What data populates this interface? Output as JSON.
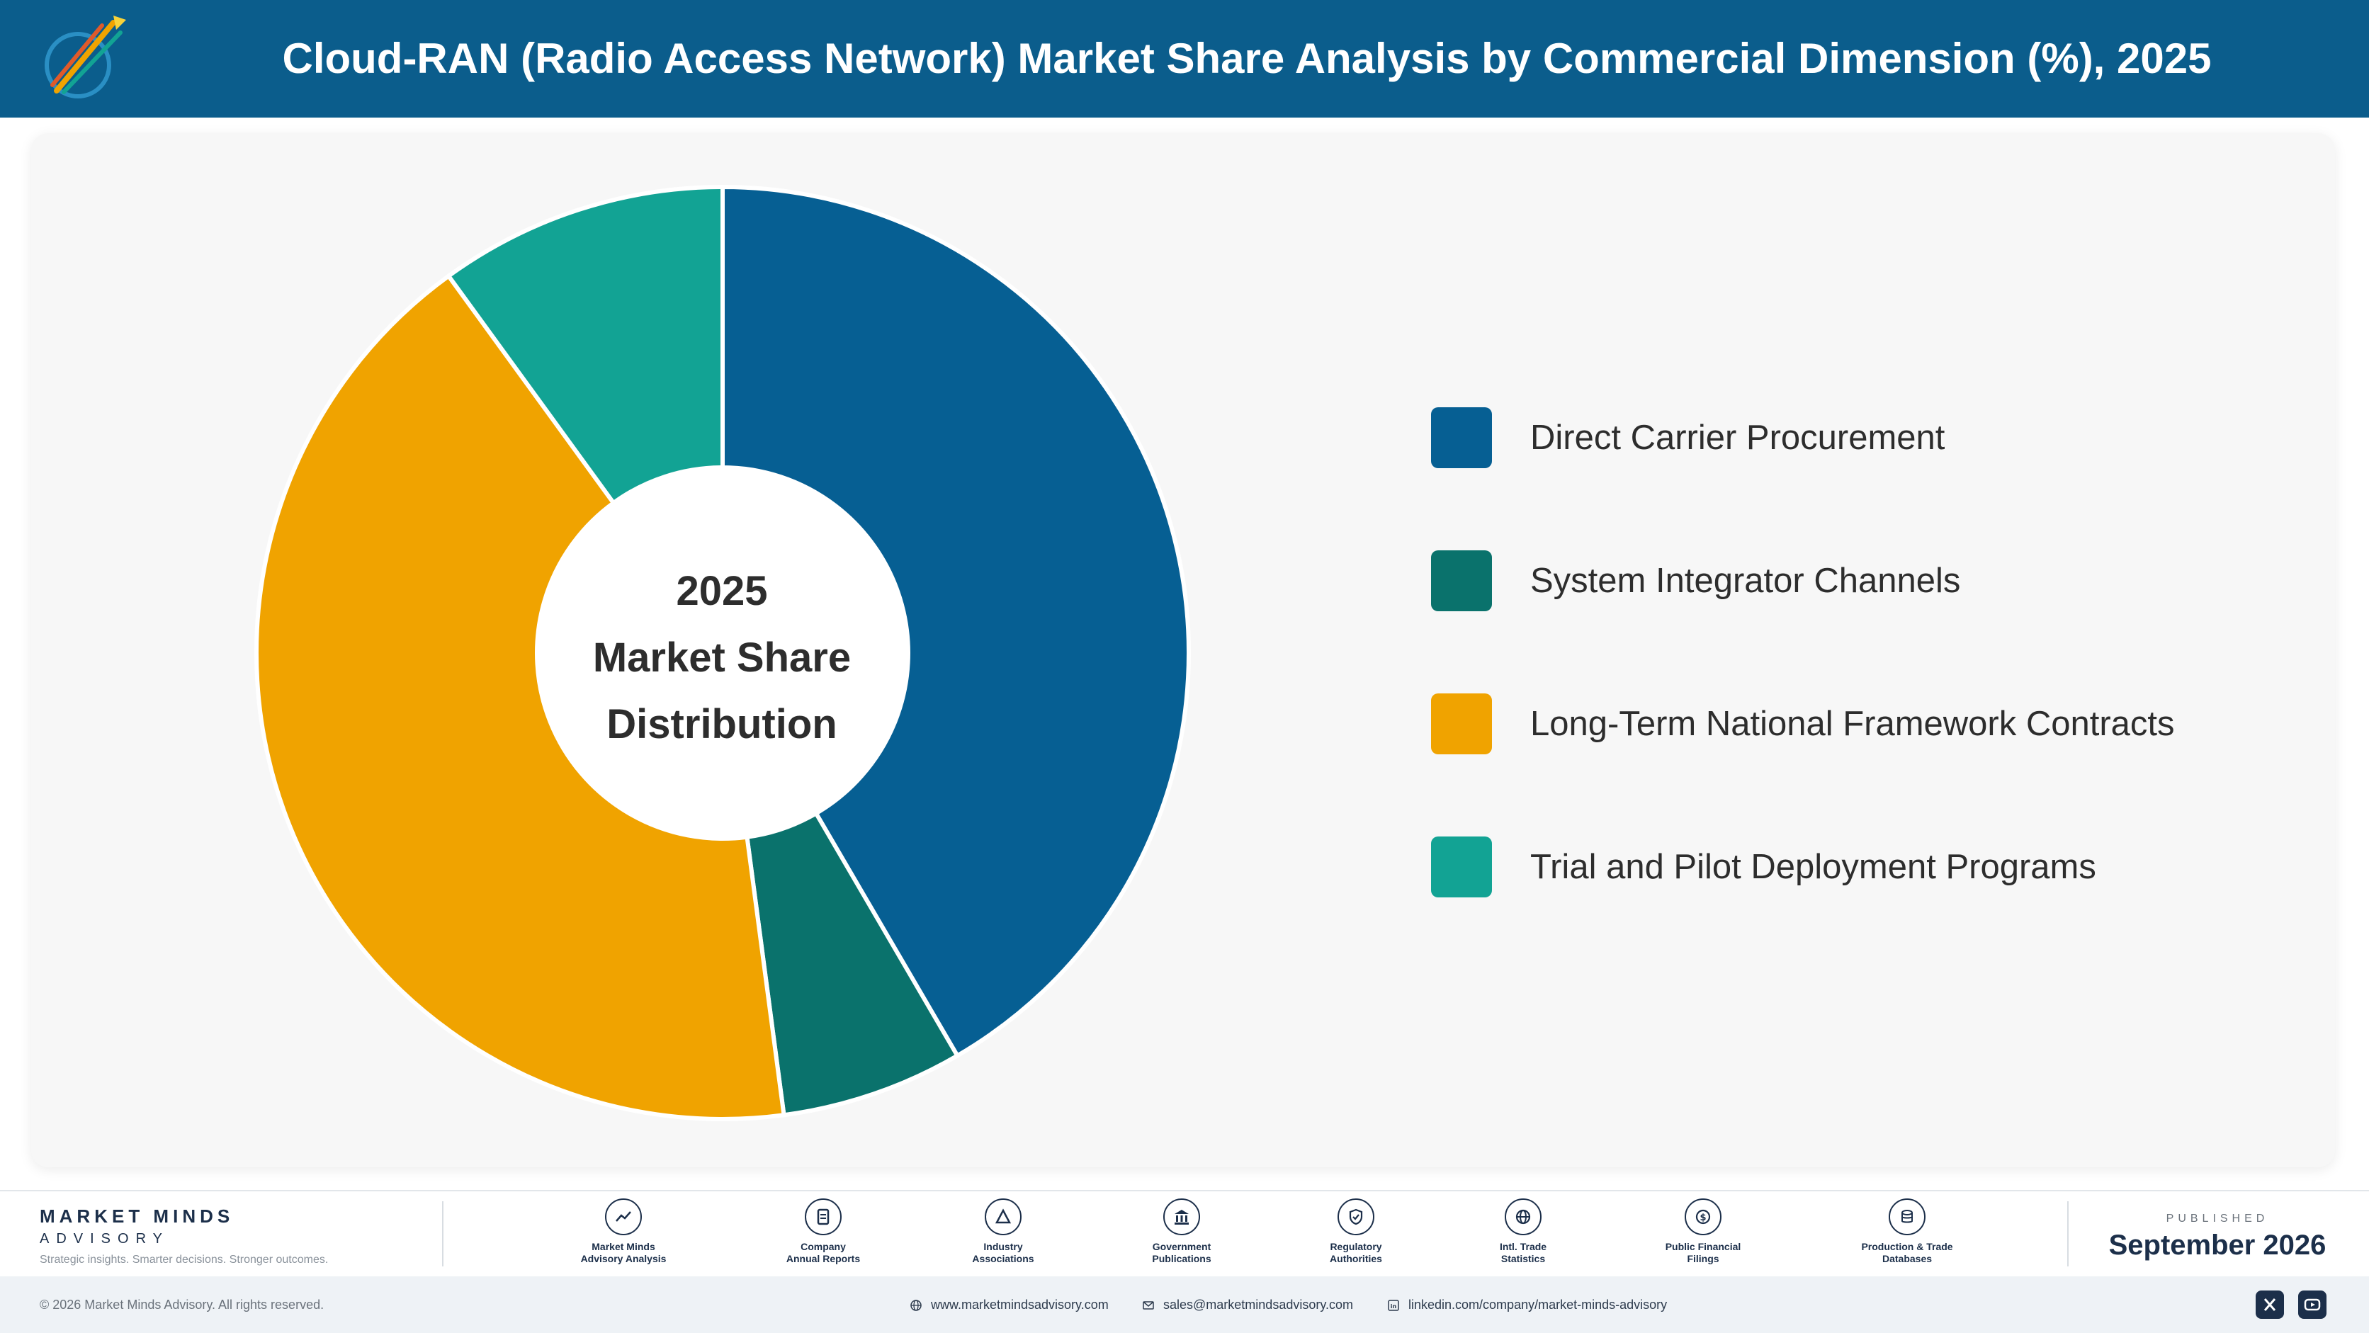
{
  "header": {
    "title": "Cloud-RAN (Radio Access Network) Market Share Analysis by Commercial Dimension (%), 2025",
    "logo_icon": "market-minds-logo-icon"
  },
  "chart_data": {
    "type": "pie",
    "variant": "donut",
    "title": "Cloud-RAN (Radio Access Network) Market Share Analysis by Commercial Dimension (%), 2025",
    "center_label": [
      "2025",
      "Market Share",
      "Distribution"
    ],
    "categories": [
      "Direct Carrier Procurement",
      "System Integrator Channels",
      "Long-Term National Framework Contracts",
      "Trial and Pilot Deployment Programs"
    ],
    "values": [
      41.6,
      6.3,
      42.1,
      10.0
    ],
    "colors": [
      "#065f93",
      "#0a726c",
      "#f0a300",
      "#12a394"
    ],
    "legend": "right"
  },
  "footer": {
    "brand_name": "MARKET MINDS",
    "brand_sub": "ADVISORY",
    "brand_tagline": "Strategic insights. Smarter decisions. Stronger outcomes.",
    "sources": [
      {
        "icon": "line-chart-icon",
        "line1": "Market Minds",
        "line2": "Advisory Analysis"
      },
      {
        "icon": "document-icon",
        "line1": "Company",
        "line2": "Annual Reports"
      },
      {
        "icon": "network-icon",
        "line1": "Industry",
        "line2": "Associations"
      },
      {
        "icon": "government-building-icon",
        "line1": "Government",
        "line2": "Publications"
      },
      {
        "icon": "shield-check-icon",
        "line1": "Regulatory",
        "line2": "Authorities"
      },
      {
        "icon": "globe-icon",
        "line1": "Intl. Trade",
        "line2": "Statistics"
      },
      {
        "icon": "dollar-coin-icon",
        "line1": "Public Financial",
        "line2": "Filings"
      },
      {
        "icon": "database-icon",
        "line1": "Production & Trade",
        "line2": "Databases"
      }
    ],
    "published_label": "PUBLISHED",
    "published_date": "September 2026",
    "copyright": "© 2026 Market Minds Advisory. All rights reserved.",
    "website": "www.marketmindsadvisory.com",
    "email": "sales@marketmindsadvisory.com",
    "linkedin": "linkedin.com/company/market-minds-advisory"
  }
}
